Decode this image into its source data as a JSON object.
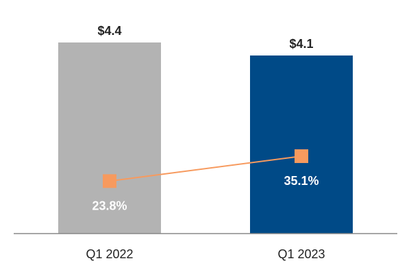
{
  "chart_data": {
    "type": "bar",
    "categories": [
      "Q1 2022",
      "Q1 2023"
    ],
    "series": [
      {
        "type": "bar",
        "values": [
          4.4,
          4.1
        ],
        "value_labels": [
          "$4.4",
          "$4.1"
        ],
        "colors": [
          "#B3B3B3",
          "#004A87"
        ]
      },
      {
        "type": "line",
        "marker": "square",
        "values": [
          23.8,
          35.1
        ],
        "value_labels": [
          "23.8%",
          "35.1%"
        ],
        "color": "#F79A5E"
      }
    ],
    "title": "",
    "xlabel": "",
    "ylabel": "",
    "bar_ylim": [
      0,
      4.4
    ],
    "line_ylim": [
      0,
      40
    ],
    "grid": false,
    "legend": "none"
  }
}
